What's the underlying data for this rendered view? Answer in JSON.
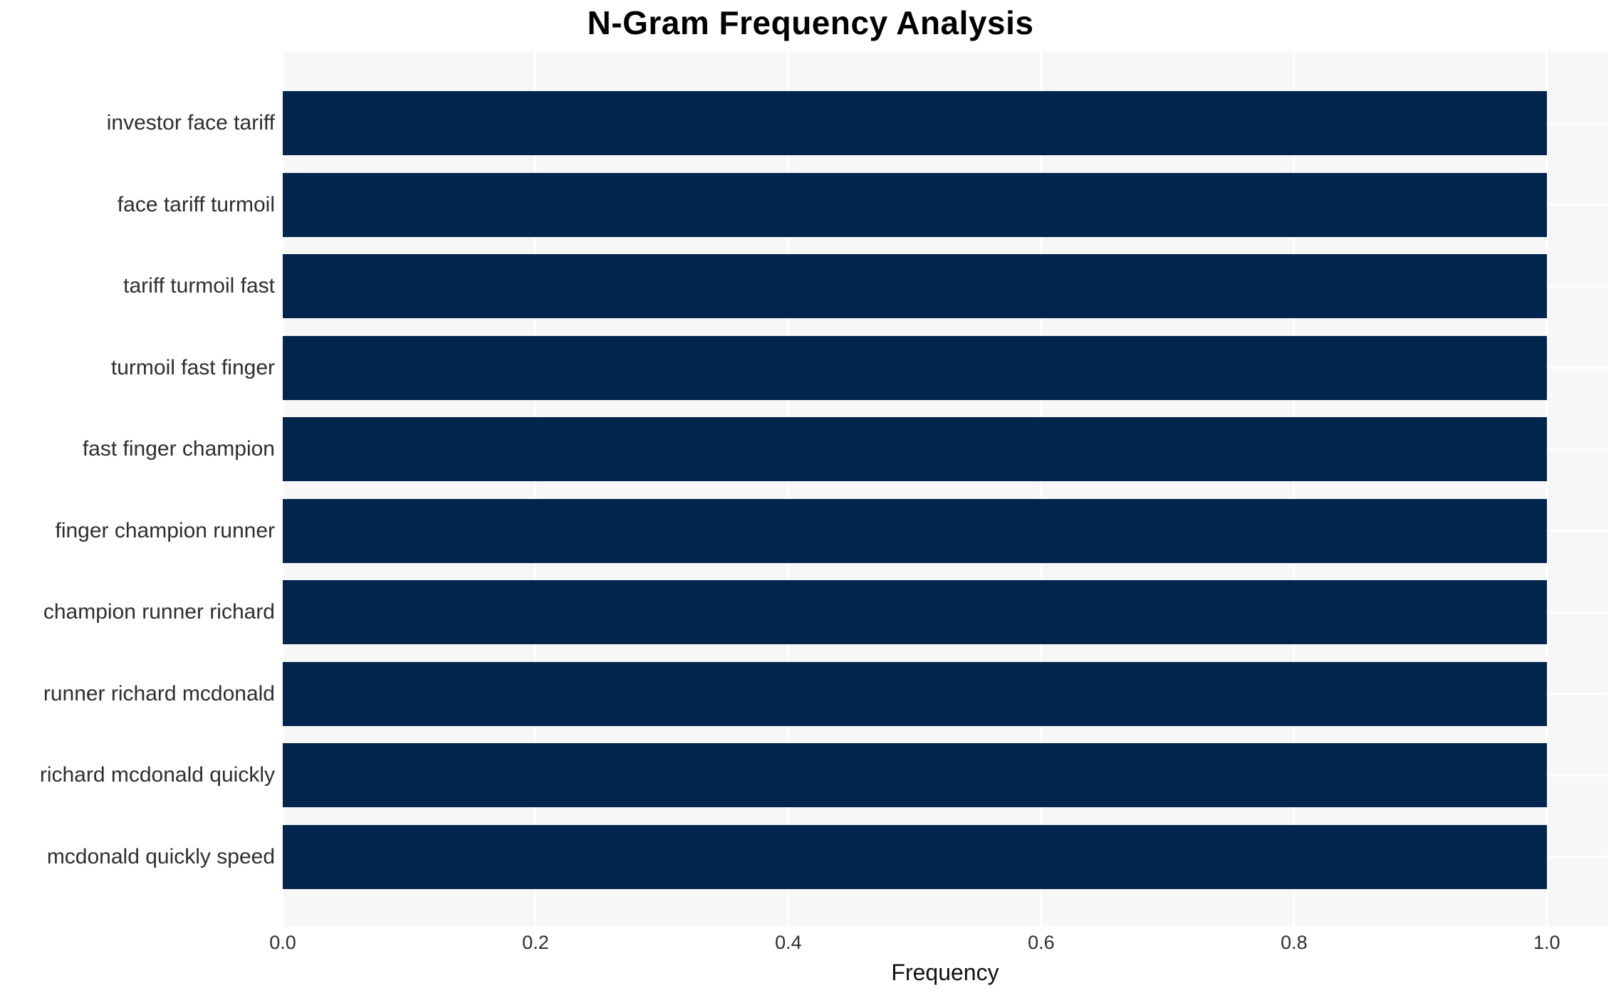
{
  "chart_data": {
    "type": "bar",
    "orientation": "horizontal",
    "title": "N-Gram Frequency Analysis",
    "xlabel": "Frequency",
    "ylabel": "",
    "categories": [
      "investor face tariff",
      "face tariff turmoil",
      "tariff turmoil fast",
      "turmoil fast finger",
      "fast finger champion",
      "finger champion runner",
      "champion runner richard",
      "runner richard mcdonald",
      "richard mcdonald quickly",
      "mcdonald quickly speed"
    ],
    "values": [
      1.0,
      1.0,
      1.0,
      1.0,
      1.0,
      1.0,
      1.0,
      1.0,
      1.0,
      1.0
    ],
    "xlim": [
      0,
      1.048
    ],
    "xticks": [
      0.0,
      0.2,
      0.4,
      0.6,
      0.8,
      1.0
    ],
    "xtick_labels": [
      "0.0",
      "0.2",
      "0.4",
      "0.6",
      "0.8",
      "1.0"
    ],
    "grid": true,
    "legend_position": "none",
    "colors": {
      "bar": "#02254e",
      "plot_background": "#f7f7f8",
      "gridline": "#ffffff",
      "tick_text": "#2e2e2e",
      "axis_title_text": "#111111",
      "title_text": "#000000",
      "page_background": "#ffffff"
    }
  }
}
